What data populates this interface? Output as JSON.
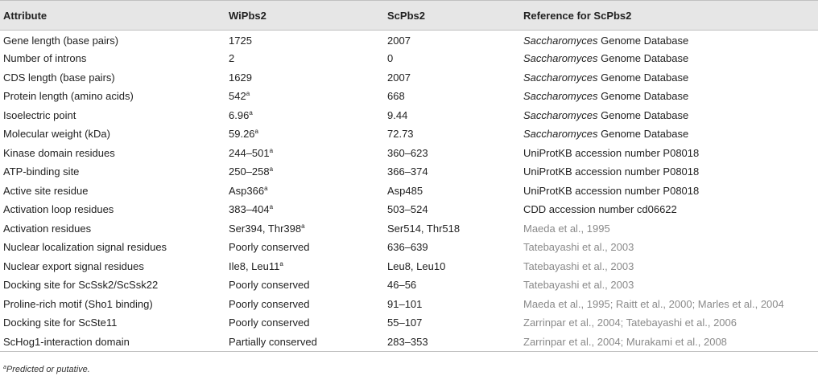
{
  "table": {
    "headers": [
      "Attribute",
      "WiPbs2",
      "ScPbs2",
      "Reference for ScPbs2"
    ],
    "rows": [
      {
        "attribute": "Gene length (base pairs)",
        "wi": "1725",
        "wi_sup": "",
        "sc": "2007",
        "ref_italic": "Saccharomyces",
        "ref": " Genome Database",
        "ref_is_citation": false
      },
      {
        "attribute": "Number of introns",
        "wi": "2",
        "wi_sup": "",
        "sc": "0",
        "ref_italic": "Saccharomyces",
        "ref": " Genome Database",
        "ref_is_citation": false
      },
      {
        "attribute": "CDS length (base pairs)",
        "wi": "1629",
        "wi_sup": "",
        "sc": "2007",
        "ref_italic": "Saccharomyces",
        "ref": " Genome Database",
        "ref_is_citation": false
      },
      {
        "attribute": "Protein length (amino acids)",
        "wi": "542",
        "wi_sup": "a",
        "sc": "668",
        "ref_italic": "Saccharomyces",
        "ref": " Genome Database",
        "ref_is_citation": false
      },
      {
        "attribute": "Isoelectric point",
        "wi": "6.96",
        "wi_sup": "a",
        "sc": "9.44",
        "ref_italic": "Saccharomyces",
        "ref": " Genome Database",
        "ref_is_citation": false
      },
      {
        "attribute": "Molecular weight (kDa)",
        "wi": "59.26",
        "wi_sup": "a",
        "sc": "72.73",
        "ref_italic": "Saccharomyces",
        "ref": " Genome Database",
        "ref_is_citation": false
      },
      {
        "attribute": "Kinase domain residues",
        "wi": "244–501",
        "wi_sup": "a",
        "sc": "360–623",
        "ref_italic": "",
        "ref": "UniProtKB accession number P08018",
        "ref_is_citation": false
      },
      {
        "attribute": "ATP-binding site",
        "wi": "250–258",
        "wi_sup": "a",
        "sc": "366–374",
        "ref_italic": "",
        "ref": "UniProtKB accession number P08018",
        "ref_is_citation": false
      },
      {
        "attribute": "Active site residue",
        "wi": "Asp366",
        "wi_sup": "a",
        "sc": "Asp485",
        "ref_italic": "",
        "ref": "UniProtKB accession number P08018",
        "ref_is_citation": false
      },
      {
        "attribute": "Activation loop residues",
        "wi": "383–404",
        "wi_sup": "a",
        "sc": "503–524",
        "ref_italic": "",
        "ref": "CDD accession number cd06622",
        "ref_is_citation": false
      },
      {
        "attribute": "Activation residues",
        "wi": "Ser394, Thr398",
        "wi_sup": "a",
        "sc": "Ser514, Thr518",
        "ref_italic": "",
        "ref": "Maeda et al., 1995",
        "ref_is_citation": true
      },
      {
        "attribute": "Nuclear localization signal residues",
        "wi": "Poorly conserved",
        "wi_sup": "",
        "sc": "636–639",
        "ref_italic": "",
        "ref": "Tatebayashi et al., 2003",
        "ref_is_citation": true
      },
      {
        "attribute": "Nuclear export signal residues",
        "wi": "Ile8, Leu11",
        "wi_sup": "a",
        "sc": "Leu8, Leu10",
        "ref_italic": "",
        "ref": "Tatebayashi et al., 2003",
        "ref_is_citation": true
      },
      {
        "attribute": "Docking site for ScSsk2/ScSsk22",
        "wi": "Poorly conserved",
        "wi_sup": "",
        "sc": "46–56",
        "ref_italic": "",
        "ref": "Tatebayashi et al., 2003",
        "ref_is_citation": true
      },
      {
        "attribute": "Proline-rich motif (Sho1 binding)",
        "wi": "Poorly conserved",
        "wi_sup": "",
        "sc": "91–101",
        "ref_italic": "",
        "ref": "Maeda et al., 1995; Raitt et al., 2000; Marles et al., 2004",
        "ref_is_citation": true
      },
      {
        "attribute": "Docking site for ScSte11",
        "wi": "Poorly conserved",
        "wi_sup": "",
        "sc": "55–107",
        "ref_italic": "",
        "ref": "Zarrinpar et al., 2004; Tatebayashi et al., 2006",
        "ref_is_citation": true
      },
      {
        "attribute": "ScHog1-interaction domain",
        "wi": "Partially conserved",
        "wi_sup": "",
        "sc": "283–353",
        "ref_italic": "",
        "ref": "Zarrinpar et al., 2004; Murakami et al., 2008",
        "ref_is_citation": true
      }
    ]
  },
  "footnote": {
    "marker": "a",
    "text": "Predicted or putative."
  }
}
